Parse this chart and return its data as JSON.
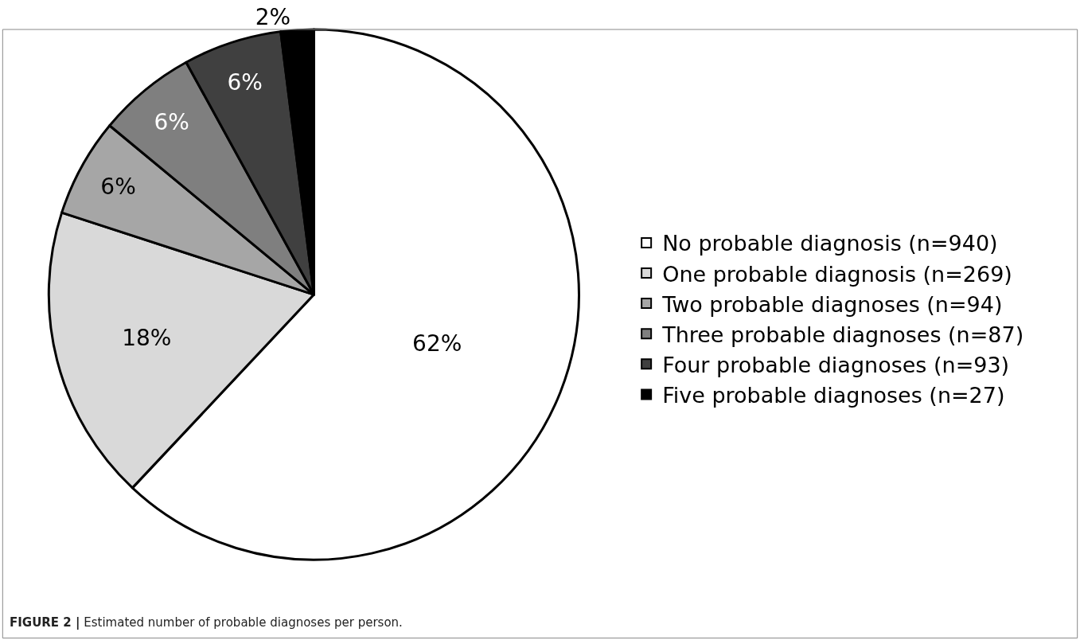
{
  "chart_data": {
    "type": "pie",
    "categories": [
      "No probable diagnosis (n=940)",
      "One probable diagnosis (n=269)",
      "Two probable diagnoses (n=94)",
      "Three probable diagnoses (n=87)",
      "Four probable diagnoses (n=93)",
      "Five probable diagnoses (n=27)"
    ],
    "values": [
      62,
      18,
      6,
      6,
      6,
      2
    ],
    "value_labels": [
      "62%",
      "18%",
      "6%",
      "6%",
      "6%",
      "2%"
    ],
    "colors": [
      "#ffffff",
      "#d9d9d9",
      "#a6a6a6",
      "#7f7f7f",
      "#404040",
      "#000000"
    ],
    "legend": "right",
    "annotations": [
      "FIGURE 2 | Estimated number of probable diagnoses per person."
    ]
  }
}
